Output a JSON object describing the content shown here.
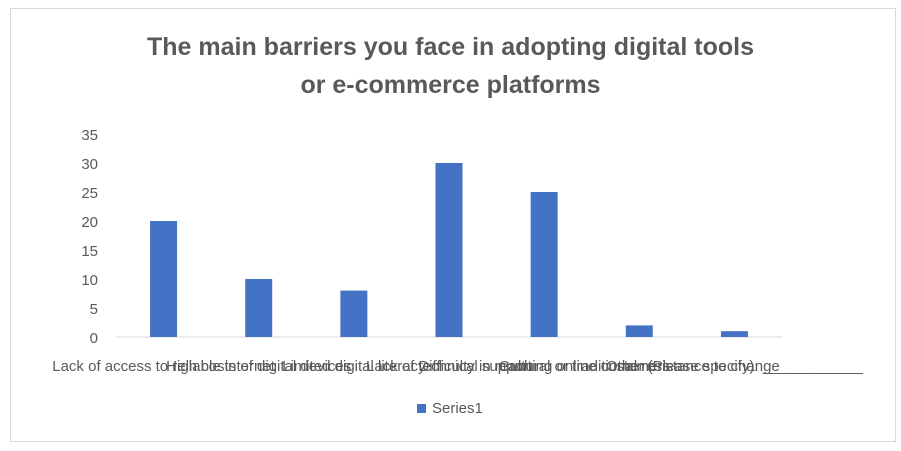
{
  "chart_data": {
    "type": "bar",
    "title": "The main barriers you face in adopting digital tools or e-commerce platforms",
    "title_lines": [
      "The main barriers you face in adopting digital tools",
      "or e-commerce platforms"
    ],
    "categories": [
      "Lack of access to reliable internet",
      "High costs of digital devices",
      "Limited digital literacy",
      "Lack of technical support",
      "Difficulty in reaching online customers",
      "Cultural or traditional resistance to change",
      "Other (Please specify): ____________"
    ],
    "series": [
      {
        "name": "Series1",
        "values": [
          20,
          10,
          8,
          30,
          25,
          2,
          1
        ],
        "color": "#4472c4"
      }
    ],
    "y_ticks": [
      0,
      5,
      10,
      15,
      20,
      25,
      30,
      35
    ],
    "ylim": [
      0,
      35
    ],
    "xlabel": "",
    "ylabel": "",
    "grid": false,
    "legend_position": "bottom"
  }
}
